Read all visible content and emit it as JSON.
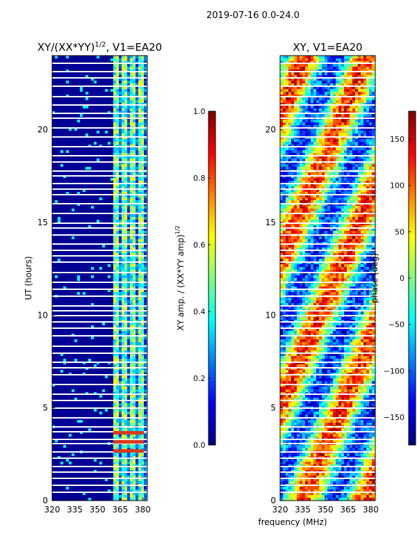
{
  "figure_title": "2019-07-16 0.0-24.0",
  "shared_xlabel": "frequency (MHz)",
  "colormap": [
    "#00007f",
    "#0000ff",
    "#007fff",
    "#00ffff",
    "#7fff7f",
    "#ffff00",
    "#ff7f00",
    "#ff0000",
    "#7f0000"
  ],
  "chart_data": [
    {
      "type": "heatmap",
      "title_main": "XY/(XX*YY)",
      "title_sup": "1/2",
      "title_rest": ", V1=EA20",
      "xlabel": "",
      "ylabel": "UT (hours)",
      "xlim": [
        320,
        383
      ],
      "ylim": [
        0,
        24
      ],
      "xticks": [
        320,
        335,
        350,
        365,
        380
      ],
      "yticks": [
        0,
        5,
        10,
        15,
        20
      ],
      "colorbar": {
        "label": "XY amp. / (XX*YY amp)",
        "label_sup": "1/2",
        "vmin": 0.0,
        "vmax": 1.0,
        "ticks": [
          "0.0",
          "0.2",
          "0.4",
          "0.6",
          "0.8",
          "1.0"
        ]
      }
    },
    {
      "type": "heatmap",
      "title_main": "XY, V1=EA20",
      "title_sup": "",
      "title_rest": "",
      "xlabel": "frequency (MHz)",
      "ylabel": "",
      "xlim": [
        320,
        383
      ],
      "ylim": [
        0,
        24
      ],
      "xticks": [
        320,
        335,
        350,
        365,
        380
      ],
      "yticks": [
        0,
        5,
        10,
        15,
        20
      ],
      "colorbar": {
        "label": "phase (deg)",
        "label_sup": "",
        "vmin": -180,
        "vmax": 180,
        "ticks": [
          "−150",
          "−100",
          "−50",
          "0",
          "50",
          "100",
          "150"
        ]
      }
    }
  ]
}
